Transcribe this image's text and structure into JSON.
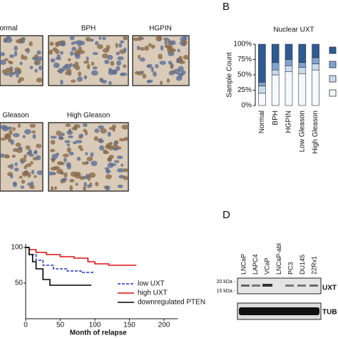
{
  "panels": {
    "a": {
      "labels": [
        "ormal",
        "BPH",
        "HGPIN",
        "Gleason",
        "High Gleason"
      ]
    },
    "b": {
      "label": "B"
    },
    "d": {
      "label": "D",
      "lanes": [
        "LNCaP",
        "LAPC4",
        "VCaP",
        "LNCaP-abl",
        "PC3",
        "DU145",
        "22Rv1"
      ],
      "markers": [
        "20 kDa -",
        "15 kDa -"
      ],
      "proteins": [
        "UXT",
        "TUB"
      ]
    }
  },
  "chart_data": [
    {
      "type": "bar",
      "stacked": true,
      "title": "Nuclear UXT",
      "y_label": "Sample Count",
      "categories": [
        "Normal",
        "BPH",
        "HGPIN",
        "Low Gleason",
        "High Gleason"
      ],
      "ylim": [
        0,
        100
      ],
      "yticks": [
        {
          "value": 0,
          "label": "0%"
        },
        {
          "value": 25,
          "label": "25%"
        },
        {
          "value": 50,
          "label": "50%"
        },
        {
          "value": 75,
          "label": "75%"
        },
        {
          "value": 100,
          "label": "100%"
        }
      ],
      "legend": true,
      "series": [
        {
          "color": "#f5f8fd",
          "values": [
            20,
            50,
            55,
            52,
            58
          ]
        },
        {
          "color": "#c9d9ee",
          "values": [
            12,
            8,
            10,
            10,
            10
          ]
        },
        {
          "color": "#7ea3d0",
          "values": [
            6,
            12,
            10,
            8,
            10
          ]
        },
        {
          "color": "#2e5b93",
          "values": [
            62,
            30,
            25,
            30,
            22
          ]
        }
      ]
    },
    {
      "type": "line",
      "x_label": "Month of relapse",
      "xlim": [
        0,
        220
      ],
      "xticks": [
        0,
        50,
        100,
        150,
        200
      ],
      "ylim": [
        0,
        105
      ],
      "yticks": [
        50,
        100
      ],
      "series": [
        {
          "name": "low UXT",
          "color": "#2233cc",
          "dashed": true,
          "x": [
            0,
            5,
            5,
            15,
            15,
            25,
            25,
            40,
            40,
            60,
            60,
            80,
            80,
            100
          ],
          "values": [
            100,
            100,
            90,
            90,
            82,
            82,
            75,
            75,
            70,
            70,
            67,
            67,
            65,
            65
          ]
        },
        {
          "name": "high UXT",
          "color": "#e01010",
          "dashed": false,
          "x": [
            0,
            5,
            5,
            15,
            15,
            30,
            30,
            50,
            50,
            70,
            70,
            90,
            90,
            100,
            100,
            120,
            120,
            160
          ],
          "values": [
            100,
            100,
            97,
            97,
            93,
            93,
            90,
            90,
            87,
            87,
            85,
            85,
            80,
            80,
            77,
            77,
            75,
            75
          ]
        },
        {
          "name": "downregulated PTEN",
          "color": "#000000",
          "dashed": false,
          "x": [
            0,
            5,
            5,
            10,
            10,
            15,
            15,
            25,
            25,
            35,
            35,
            95
          ],
          "values": [
            100,
            100,
            90,
            90,
            80,
            80,
            70,
            70,
            55,
            55,
            47,
            47
          ]
        }
      ]
    }
  ]
}
